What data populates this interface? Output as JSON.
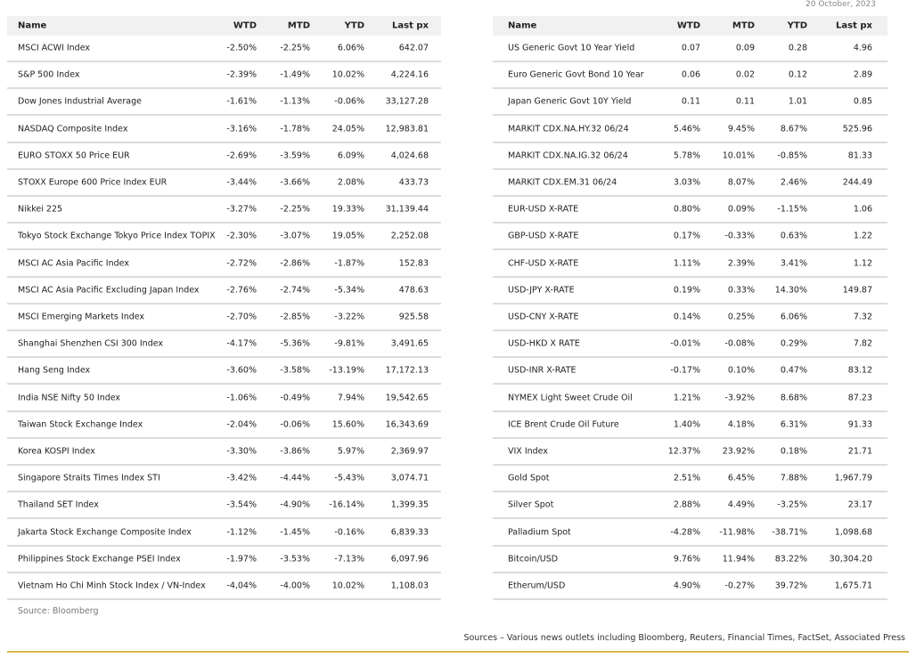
{
  "date": "20 October, 2023",
  "left_table": {
    "header": [
      "Name",
      "WTD",
      "MTD",
      "YTD",
      "Last px"
    ],
    "rows": [
      [
        "MSCI ACWI Index",
        "-2.50%",
        "-2.25%",
        "6.06%",
        "642.07"
      ],
      [
        "S&P 500 Index",
        "-2.39%",
        "-1.49%",
        "10.02%",
        "4,224.16"
      ],
      [
        "Dow Jones Industrial Average",
        "-1.61%",
        "-1.13%",
        "-0.06%",
        "33,127.28"
      ],
      [
        "NASDAQ Composite Index",
        "-3.16%",
        "-1.78%",
        "24.05%",
        "12,983.81"
      ],
      [
        "EURO STOXX 50 Price EUR",
        "-2.69%",
        "-3.59%",
        "6.09%",
        "4,024.68"
      ],
      [
        "STOXX Europe 600 Price Index EUR",
        "-3.44%",
        "-3.66%",
        "2.08%",
        "433.73"
      ],
      [
        "Nikkei 225",
        "-3.27%",
        "-2.25%",
        "19.33%",
        "31,139.44"
      ],
      [
        "Tokyo Stock Exchange Tokyo Price Index TOPIX",
        "-2.30%",
        "-3.07%",
        "19.05%",
        "2,252.08"
      ],
      [
        "MSCI AC Asia Pacific Index",
        "-2.72%",
        "-2.86%",
        "-1.87%",
        "152.83"
      ],
      [
        "MSCI AC Asia Pacific Excluding Japan Index",
        "-2.76%",
        "-2.74%",
        "-5.34%",
        "478.63"
      ],
      [
        "MSCI Emerging Markets Index",
        "-2.70%",
        "-2.85%",
        "-3.22%",
        "925.58"
      ],
      [
        "Shanghai Shenzhen CSI 300 Index",
        "-4.17%",
        "-5.36%",
        "-9.81%",
        "3,491.65"
      ],
      [
        "Hang Seng Index",
        "-3.60%",
        "-3.58%",
        "-13.19%",
        "17,172.13"
      ],
      [
        "India NSE Nifty 50 Index",
        "-1.06%",
        "-0.49%",
        "7.94%",
        "19,542.65"
      ],
      [
        "Taiwan Stock Exchange Index",
        "-2.04%",
        "-0.06%",
        "15.60%",
        "16,343.69"
      ],
      [
        "Korea KOSPI Index",
        "-3.30%",
        "-3.86%",
        "5.97%",
        "2,369.97"
      ],
      [
        "Singapore Straits Times Index STI",
        "-3.42%",
        "-4.44%",
        "-5.43%",
        "3,074.71"
      ],
      [
        "Thailand SET Index",
        "-3.54%",
        "-4.90%",
        "-16.14%",
        "1,399.35"
      ],
      [
        "Jakarta Stock Exchange Composite Index",
        "-1.12%",
        "-1.45%",
        "-0.16%",
        "6,839.33"
      ],
      [
        "Philippines Stock Exchange PSEI Index",
        "-1.97%",
        "-3.53%",
        "-7.13%",
        "6,097.96"
      ],
      [
        "Vietnam Ho Chi Minh Stock Index / VN-Index",
        "-4,04%",
        "-4.00%",
        "10.02%",
        "1,108.03"
      ]
    ]
  },
  "right_table": {
    "header": [
      "Name",
      "WTD",
      "MTD",
      "YTD",
      "Last px"
    ],
    "rows": [
      [
        "US Generic Govt 10 Year Yield",
        "0.07",
        "0.09",
        "0.28",
        "4.96"
      ],
      [
        "Euro Generic Govt Bond 10 Year",
        "0.06",
        "0.02",
        "0.12",
        "2.89"
      ],
      [
        "Japan Generic Govt 10Y Yield",
        "0.11",
        "0.11",
        "1.01",
        "0.85"
      ],
      [
        "MARKIT CDX.NA.HY.32 06/24",
        "5.46%",
        "9.45%",
        "8.67%",
        "525.96"
      ],
      [
        "MARKIT CDX.NA.IG.32 06/24",
        "5.78%",
        "10.01%",
        "-0.85%",
        "81.33"
      ],
      [
        "MARKIT CDX.EM.31 06/24",
        "3.03%",
        "8.07%",
        "2.46%",
        "244.49"
      ],
      [
        "EUR-USD X-RATE",
        "0.80%",
        "0.09%",
        "-1.15%",
        "1.06"
      ],
      [
        "GBP-USD X-RATE",
        "0.17%",
        "-0.33%",
        "0.63%",
        "1.22"
      ],
      [
        "CHF-USD X-RATE",
        "1.11%",
        "2.39%",
        "3.41%",
        "1.12"
      ],
      [
        "USD-JPY X-RATE",
        "0.19%",
        "0.33%",
        "14.30%",
        "149.87"
      ],
      [
        "USD-CNY X-RATE",
        "0.14%",
        "0.25%",
        "6.06%",
        "7.32"
      ],
      [
        "USD-HKD X RATE",
        "-0.01%",
        "-0.08%",
        "0.29%",
        "7.82"
      ],
      [
        "USD-INR X-RATE",
        "-0.17%",
        "0.10%",
        "0.47%",
        "83.12"
      ],
      [
        "NYMEX Light Sweet Crude Oil",
        "1.21%",
        "-3.92%",
        "8.68%",
        "87.23"
      ],
      [
        "ICE Brent Crude Oil Future",
        "1.40%",
        "4.18%",
        "6.31%",
        "91.33"
      ],
      [
        "VIX Index",
        "12.37%",
        "23.92%",
        "0.18%",
        "21.71"
      ],
      [
        "Gold Spot",
        "2.51%",
        "6.45%",
        "7.88%",
        "1,967.79"
      ],
      [
        "Silver Spot",
        "2.88%",
        "4.49%",
        "-3.25%",
        "23.17"
      ],
      [
        "Palladium Spot",
        "-4.28%",
        "-11.98%",
        "-38.71%",
        "1,098.68"
      ],
      [
        "Bitcoin/USD",
        "9.76%",
        "11.94%",
        "83.22%",
        "30,304.20"
      ],
      [
        "Etherum/USD",
        "4.90%",
        "-0.27%",
        "39.72%",
        "1,675.71"
      ]
    ]
  },
  "source": "Source: Bloomberg",
  "footer": "Sources – Various news outlets including Bloomberg, Reuters, Financial Times, FactSet, Associated Press"
}
